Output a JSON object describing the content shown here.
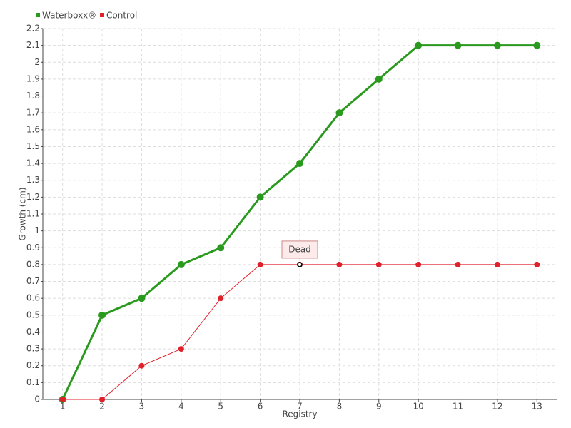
{
  "chart_data": {
    "type": "line",
    "x_label": "Registry",
    "y_label": "Growth (cm)",
    "categories": [
      "1",
      "2",
      "3",
      "4",
      "5",
      "6",
      "7",
      "8",
      "9",
      "10",
      "11",
      "12",
      "13"
    ],
    "series": [
      {
        "name": "Waterboxx®",
        "color": "#2a9a1e",
        "values": [
          0,
          0.5,
          0.6,
          0.8,
          0.9,
          1.2,
          1.4,
          1.7,
          1.9,
          2.1,
          2.1,
          2.1,
          2.1
        ]
      },
      {
        "name": "Control",
        "color": "#e0202a",
        "values": [
          0,
          0,
          0.2,
          0.3,
          0.6,
          0.8,
          0.8,
          0.8,
          0.8,
          0.8,
          0.8,
          0.8,
          0.8
        ]
      }
    ],
    "ylim": [
      0,
      2.2
    ],
    "yticks": [
      0,
      0.1,
      0.2,
      0.3,
      0.4,
      0.5,
      0.6,
      0.7,
      0.8,
      0.9,
      1,
      1.1,
      1.2,
      1.3,
      1.4,
      1.5,
      1.6,
      1.7,
      1.8,
      1.9,
      2,
      2.1,
      2.2
    ],
    "grid": true,
    "annotations": [
      {
        "text": "Dead",
        "x": "7"
      }
    ]
  }
}
